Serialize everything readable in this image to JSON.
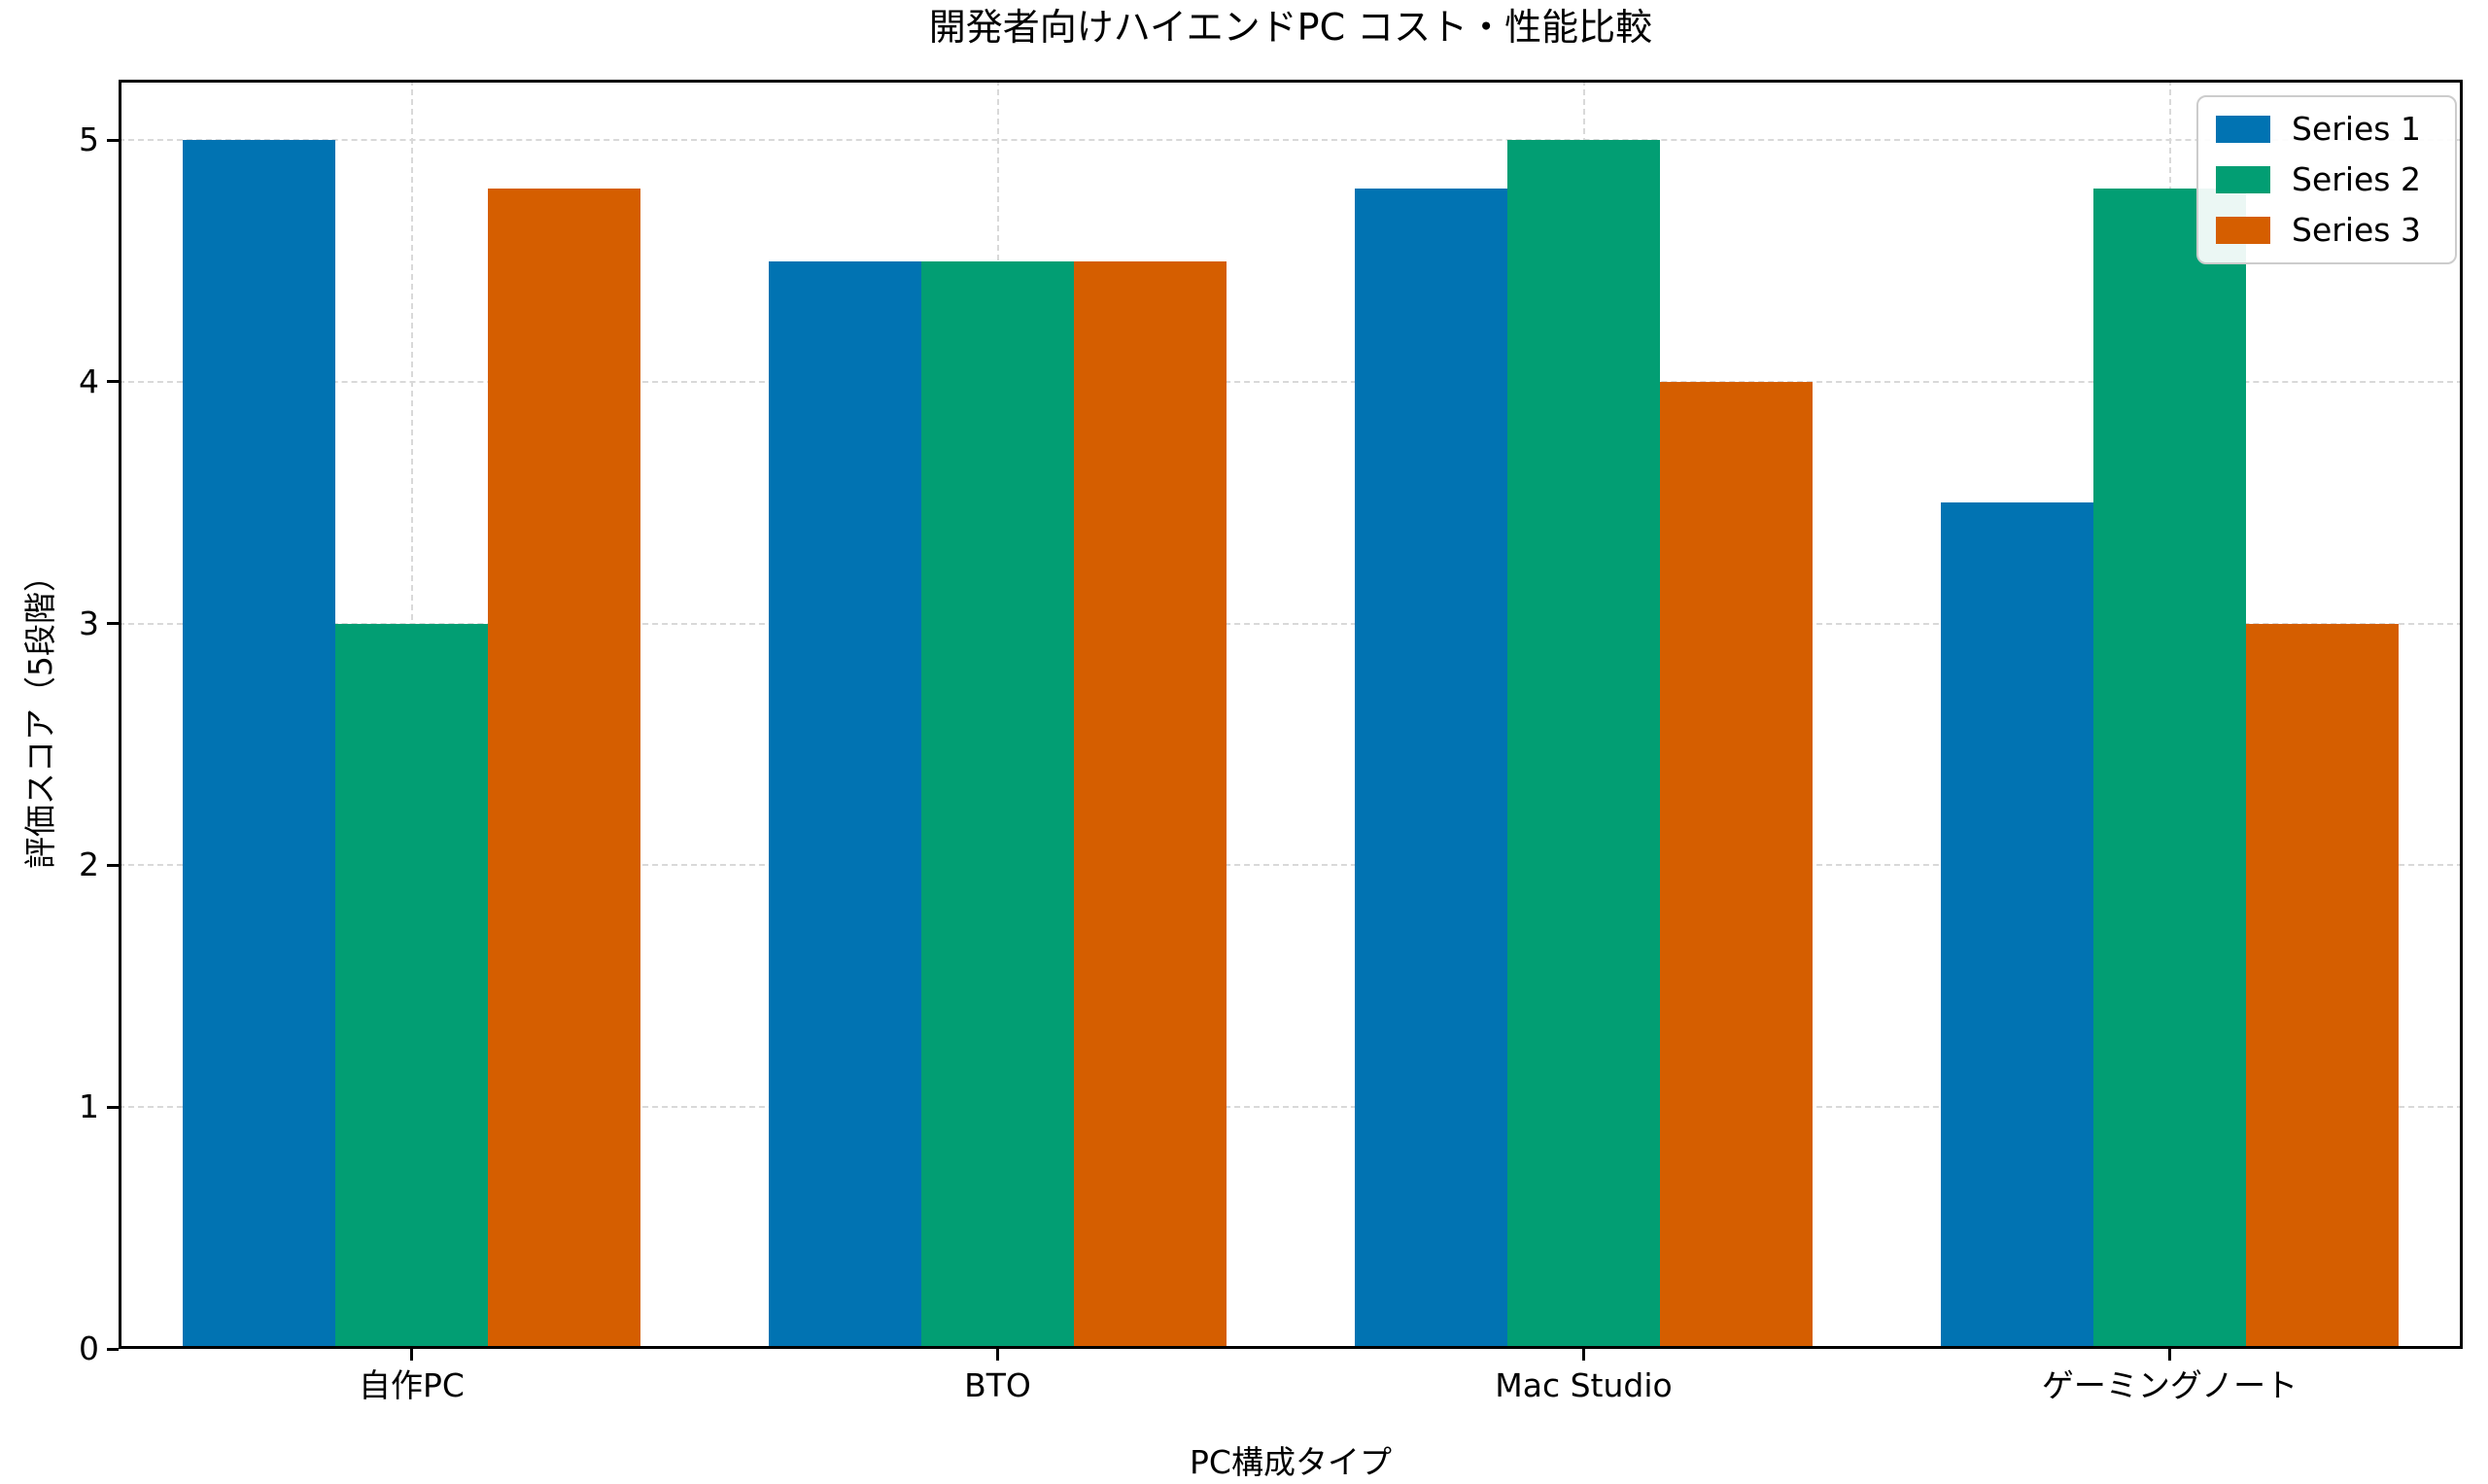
{
  "chart_data": {
    "type": "bar",
    "title": "開発者向けハイエンドPC コスト・性能比較",
    "xlabel": "PC構成タイプ",
    "ylabel": "評価スコア（5段階）",
    "categories": [
      "自作PC",
      "BTO",
      "Mac Studio",
      "ゲーミングノート"
    ],
    "series": [
      {
        "name": "Series 1",
        "color": "#0173b2",
        "values": [
          5.0,
          4.5,
          4.8,
          3.5
        ]
      },
      {
        "name": "Series 2",
        "color": "#029e73",
        "values": [
          3.0,
          4.5,
          5.0,
          4.8
        ]
      },
      {
        "name": "Series 3",
        "color": "#d55e00",
        "values": [
          4.8,
          4.5,
          4.0,
          3.0
        ]
      }
    ],
    "ylim": [
      0,
      5.25
    ],
    "yticks": [
      0,
      1,
      2,
      3,
      4,
      5
    ],
    "grid": true,
    "grid_style": "dashed",
    "grid_color": "#d9d9d9",
    "axis_color": "#000000",
    "background": "#ffffff",
    "legend": {
      "position": "upper right",
      "entries": [
        "Series 1",
        "Series 2",
        "Series 3"
      ]
    }
  }
}
